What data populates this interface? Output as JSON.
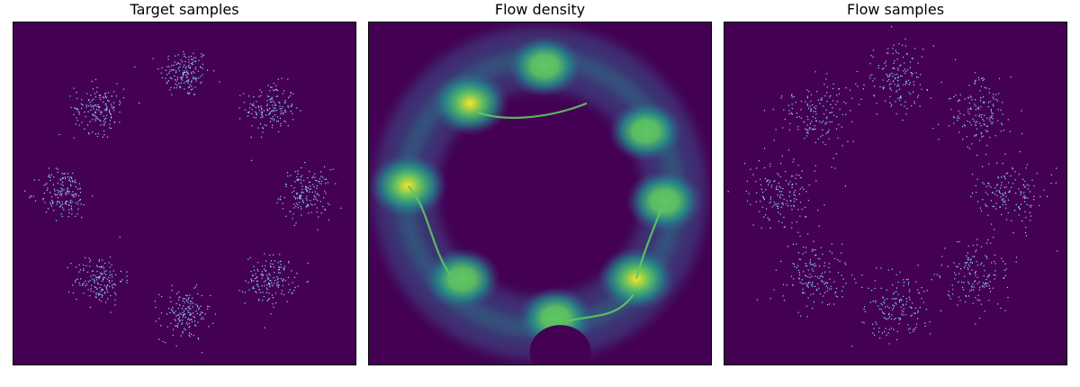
{
  "figure": {
    "panels": [
      {
        "title": "Target samples"
      },
      {
        "title": "Flow density"
      },
      {
        "title": "Flow samples"
      }
    ]
  },
  "colors": {
    "background": "#440154",
    "point": "#8fd7ff",
    "viridis": [
      "#440154",
      "#3b528b",
      "#21918c",
      "#5ec962",
      "#fde725"
    ]
  },
  "chart_data": [
    {
      "type": "scatter",
      "title": "Target samples",
      "mixture": {
        "components": 8,
        "ring_radius": 0.78,
        "angles_deg": [
          90,
          45,
          0,
          -45,
          -90,
          -135,
          180,
          135
        ],
        "std": 0.08,
        "samples_per_component": 160
      },
      "xlim": [
        -1.1,
        1.1
      ],
      "ylim": [
        -1.1,
        1.1
      ],
      "grid": false,
      "ticks": false
    },
    {
      "type": "heatmap",
      "title": "Flow density",
      "colormap": "viridis",
      "modes": [
        {
          "x": 0.03,
          "y": 0.82,
          "intensity": 0.75
        },
        {
          "x": -0.45,
          "y": 0.58,
          "intensity": 0.95
        },
        {
          "x": 0.68,
          "y": 0.4,
          "intensity": 0.7
        },
        {
          "x": -0.85,
          "y": 0.05,
          "intensity": 1.0
        },
        {
          "x": 0.8,
          "y": -0.05,
          "intensity": 0.85
        },
        {
          "x": -0.5,
          "y": -0.55,
          "intensity": 0.8
        },
        {
          "x": 0.62,
          "y": -0.55,
          "intensity": 0.9
        },
        {
          "x": 0.1,
          "y": -0.8,
          "intensity": 0.8
        }
      ],
      "xlim": [
        -1.1,
        1.1
      ],
      "ylim": [
        -1.1,
        1.1
      ],
      "grid": false,
      "ticks": false
    },
    {
      "type": "scatter",
      "title": "Flow samples",
      "mixture": {
        "components": 8,
        "ring_radius": 0.74,
        "angles_deg": [
          90,
          45,
          0,
          -45,
          -90,
          -135,
          180,
          135
        ],
        "std": 0.11,
        "samples_per_component": 160
      },
      "xlim": [
        -1.1,
        1.1
      ],
      "ylim": [
        -1.1,
        1.1
      ],
      "grid": false,
      "ticks": false
    }
  ]
}
